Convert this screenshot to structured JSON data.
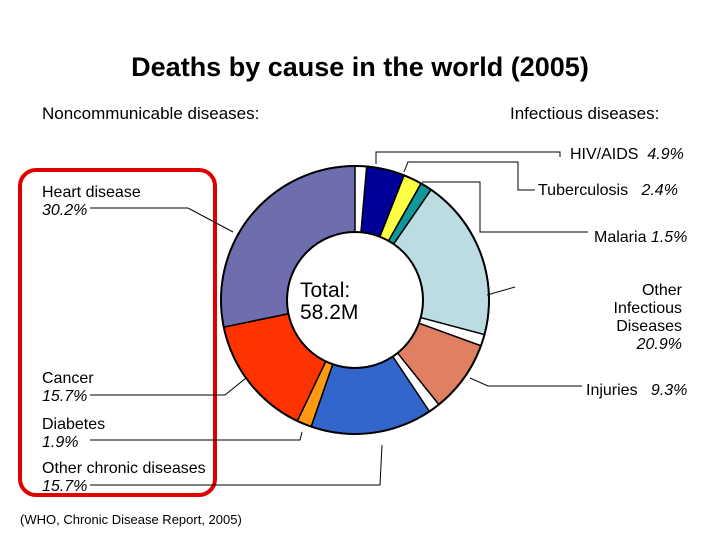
{
  "chart_data": {
    "type": "pie",
    "title": "Deaths by cause in the world (2005)",
    "group_labels": {
      "left": "Noncommunicable diseases:",
      "right": "Infectious diseases:"
    },
    "center_text": [
      "Total:",
      "58.2M"
    ],
    "source": "(WHO, Chronic Disease Report, 2005)",
    "slices": [
      {
        "label": "HIV/AIDS",
        "value": 4.9,
        "value_label": "4.9%",
        "color": "#000099"
      },
      {
        "label": "Tuberculosis",
        "value": 2.4,
        "value_label": "2.4%",
        "color": "#ffff44"
      },
      {
        "label": "Malaria",
        "value": 1.5,
        "value_label": "1.5%",
        "color": "#119999"
      },
      {
        "label": "Other Infectious Diseases",
        "value": 20.9,
        "value_label": "20.9%",
        "color": "#bbdde2"
      },
      {
        "label": "Injuries",
        "value": 9.3,
        "value_label": "9.3%",
        "color": "#e07f62"
      },
      {
        "label": "Other chronic diseases",
        "value": 15.7,
        "value_label": "15.7%",
        "color": "#3366cc"
      },
      {
        "label": "Diabetes",
        "value": 1.9,
        "value_label": "1.9%",
        "color": "#ff9911"
      },
      {
        "label": "Cancer",
        "value": 15.7,
        "value_label": "15.7%",
        "color": "#ff3300"
      },
      {
        "label": "Heart disease",
        "value": 30.2,
        "value_label": "30.2%",
        "color": "#6e6eae"
      }
    ],
    "highlight_color": "#e00000"
  }
}
